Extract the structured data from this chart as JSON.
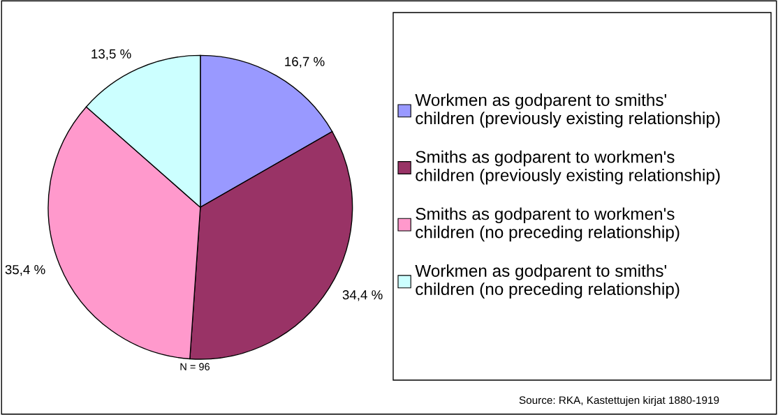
{
  "chart_data": {
    "type": "pie",
    "categories": [
      "Workmen as godparent to smiths'\nchildren (previously existing relationship)",
      "Smiths as godparent to workmen's\nchildren (previously existing relationship)",
      "Smiths as godparent to workmen's\nchildren (no preceding relationship)",
      "Workmen as godparent to smiths'\nchildren (no preceding relationship)"
    ],
    "values": [
      16.7,
      34.4,
      35.4,
      13.5
    ],
    "value_labels": [
      "16,7 %",
      "34,4 %",
      "35,4 %",
      "13,5 %"
    ],
    "colors": [
      "#9999ff",
      "#993366",
      "#ff99cc",
      "#ccffff"
    ],
    "legend": "right",
    "annotations": [
      "N = 96",
      "Source: RKA, Kastettujen kirjat 1880-1919"
    ]
  }
}
